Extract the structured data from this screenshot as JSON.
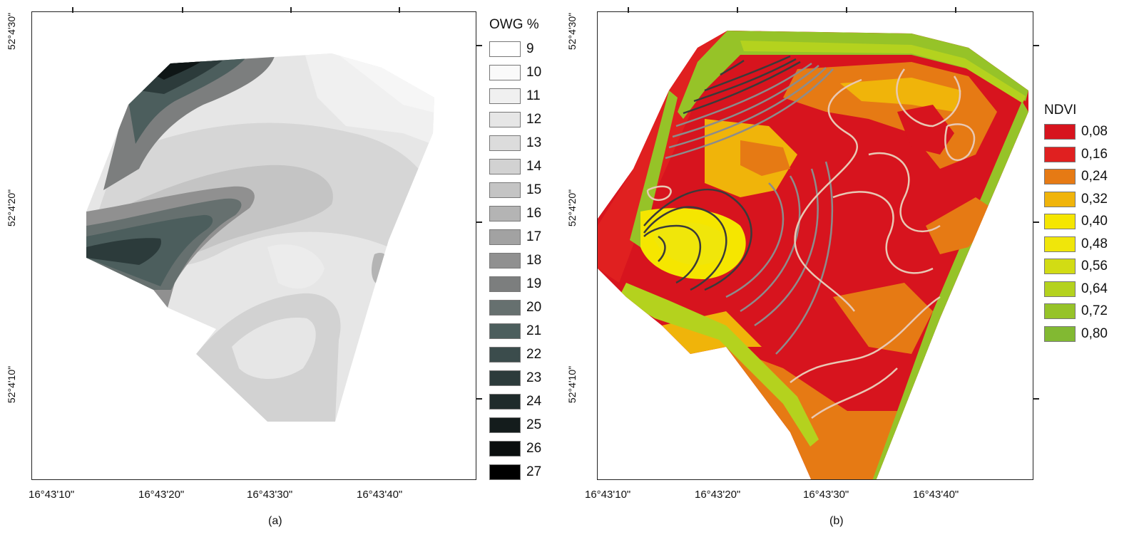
{
  "panel_a": {
    "caption": "(a)",
    "x_ticks": [
      "16°43'10\"",
      "16°43'20\"",
      "16°43'30\"",
      "16°43'40\""
    ],
    "y_ticks": [
      "52°4'30\"",
      "52°4'20\"",
      "52°4'10\""
    ],
    "legend": {
      "title": "OWG %",
      "items": [
        {
          "label": "9",
          "color": "#ffffff"
        },
        {
          "label": "10",
          "color": "#fafafa"
        },
        {
          "label": "11",
          "color": "#f0f0f0"
        },
        {
          "label": "12",
          "color": "#e6e6e6"
        },
        {
          "label": "13",
          "color": "#dcdcdc"
        },
        {
          "label": "14",
          "color": "#d2d2d2"
        },
        {
          "label": "15",
          "color": "#c4c4c4"
        },
        {
          "label": "16",
          "color": "#b4b4b4"
        },
        {
          "label": "17",
          "color": "#a2a2a2"
        },
        {
          "label": "18",
          "color": "#909090"
        },
        {
          "label": "19",
          "color": "#7c7e7e"
        },
        {
          "label": "20",
          "color": "#66706f"
        },
        {
          "label": "21",
          "color": "#4c5e5d"
        },
        {
          "label": "22",
          "color": "#3b4c4c"
        },
        {
          "label": "23",
          "color": "#2c3b3b"
        },
        {
          "label": "24",
          "color": "#1f2b2b"
        },
        {
          "label": "25",
          "color": "#141c1c"
        },
        {
          "label": "26",
          "color": "#0a0e0e"
        },
        {
          "label": "27",
          "color": "#000000"
        }
      ]
    }
  },
  "panel_b": {
    "caption": "(b)",
    "x_ticks": [
      "16°43'10\"",
      "16°43'20\"",
      "16°43'30\"",
      "16°43'40\""
    ],
    "y_ticks": [
      "52°4'30\"",
      "52°4'20\"",
      "52°4'10\""
    ],
    "legend": {
      "title": "NDVI",
      "items": [
        {
          "label": "0,08",
          "color": "#d7141e"
        },
        {
          "label": "0,16",
          "color": "#e02020"
        },
        {
          "label": "0,24",
          "color": "#e67a14"
        },
        {
          "label": "0,32",
          "color": "#f0b40a"
        },
        {
          "label": "0,40",
          "color": "#f5e600"
        },
        {
          "label": "0,48",
          "color": "#f0e60a"
        },
        {
          "label": "0,56",
          "color": "#d2dc14"
        },
        {
          "label": "0,64",
          "color": "#b4d21e"
        },
        {
          "label": "0,72",
          "color": "#96c328"
        },
        {
          "label": "0,80",
          "color": "#82b932"
        }
      ]
    }
  }
}
